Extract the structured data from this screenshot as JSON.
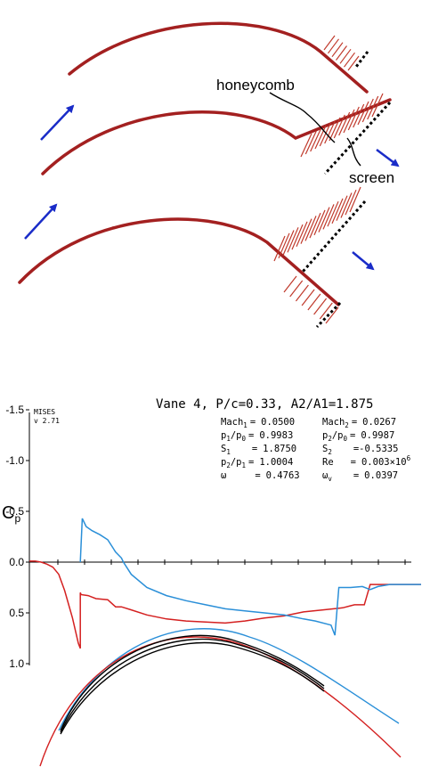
{
  "diagram": {
    "labels": {
      "honeycomb": "honeycomb",
      "screen": "screen"
    },
    "colors": {
      "vane": "#a32020",
      "honeycomb_lines": "#c0392b",
      "screen": "#000000",
      "flow_arrow": "#1a2cc8"
    }
  },
  "plot": {
    "program_name": "MISES",
    "program_version": "v 2.71",
    "title": "Vane 4, P/c=0.33, A2/A1=1.875",
    "ylabel_base": "C",
    "ylabel_sub": "p",
    "y_ticks": [
      "-1.5",
      "-1.0",
      "-0.5",
      "0.0",
      "0.5",
      "1.0"
    ],
    "params": [
      {
        "name": "Mach",
        "sub": "1",
        "value": "0.0500"
      },
      {
        "name": "Mach",
        "sub": "2",
        "value": "0.0267"
      },
      {
        "name": "p",
        "sub": "1",
        "name2": "/p",
        "sub2": "0",
        "value": "0.9983"
      },
      {
        "name": "p",
        "sub": "2",
        "name2": "/p",
        "sub2": "0",
        "value": "0.9987"
      },
      {
        "name": "S",
        "sub": "1",
        "value": "1.8750"
      },
      {
        "name": "S",
        "sub": "2",
        "value": "-0.5335"
      },
      {
        "name": "p",
        "sub": "2",
        "name2": "/p",
        "sub2": "1",
        "value": "1.0004"
      },
      {
        "name": "Re",
        "sub": "",
        "value": "0.003×10",
        "sup": "6"
      },
      {
        "name": "ω",
        "sub": "",
        "value": "0.4763"
      },
      {
        "name": "ω",
        "sub": "v",
        "value": "0.0397"
      }
    ],
    "colors": {
      "suction": "#2a8fd8",
      "pressure": "#d42020",
      "geometry": "#000000",
      "axis": "#000000"
    },
    "chart_data": {
      "type": "line",
      "ylim": [
        1.0,
        -1.5
      ],
      "y_inverted": true,
      "series": [
        {
          "x": [
            0.0,
            0.015,
            0.03,
            0.045,
            0.06,
            0.075,
            0.09,
            0.11,
            0.125,
            0.13,
            0.13,
            0.132,
            0.15,
            0.17,
            0.2,
            0.22,
            0.235,
            0.26,
            0.3,
            0.35,
            0.4,
            0.45,
            0.5,
            0.55,
            0.6,
            0.65,
            0.7,
            0.75,
            0.8,
            0.82,
            0.83,
            0.855,
            0.87,
            0.88,
            0.9,
            0.95,
            1.0
          ],
          "y": [
            -0.01,
            -0.01,
            0.0,
            0.02,
            0.05,
            0.12,
            0.28,
            0.55,
            0.8,
            0.85,
            0.3,
            0.32,
            0.33,
            0.36,
            0.37,
            0.44,
            0.44,
            0.47,
            0.52,
            0.56,
            0.58,
            0.59,
            0.6,
            0.58,
            0.55,
            0.53,
            0.49,
            0.47,
            0.45,
            0.43,
            0.42,
            0.42,
            0.22,
            0.22,
            0.22,
            0.22,
            0.22
          ]
        },
        {
          "x": [
            0.13,
            0.135,
            0.145,
            0.16,
            0.18,
            0.2,
            0.22,
            0.235,
            0.24,
            0.26,
            0.3,
            0.35,
            0.4,
            0.45,
            0.5,
            0.55,
            0.6,
            0.65,
            0.7,
            0.73,
            0.77,
            0.78,
            0.79,
            0.82,
            0.85,
            0.87,
            0.89,
            0.92,
            0.95,
            1.0
          ],
          "y": [
            0.0,
            -0.43,
            -0.35,
            -0.31,
            -0.27,
            -0.22,
            -0.1,
            -0.04,
            0.0,
            0.12,
            0.25,
            0.33,
            0.38,
            0.42,
            0.46,
            0.48,
            0.5,
            0.52,
            0.56,
            0.58,
            0.62,
            0.72,
            0.25,
            0.25,
            0.24,
            0.27,
            0.24,
            0.22,
            0.22,
            0.22
          ]
        }
      ]
    }
  }
}
